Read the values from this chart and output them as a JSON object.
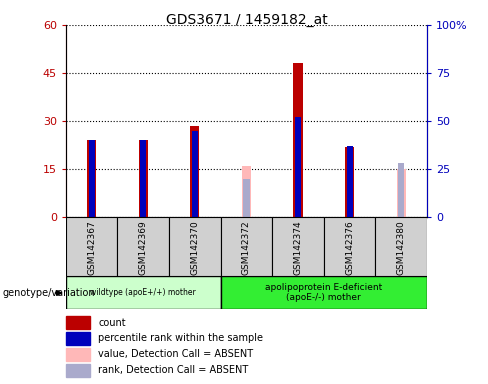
{
  "title": "GDS3671 / 1459182_at",
  "samples": [
    "GSM142367",
    "GSM142369",
    "GSM142370",
    "GSM142372",
    "GSM142374",
    "GSM142376",
    "GSM142380"
  ],
  "count_values": [
    24,
    24,
    28.5,
    null,
    48,
    22,
    null
  ],
  "percentile_values": [
    40,
    40,
    45,
    null,
    52,
    37,
    null
  ],
  "absent_count_values": [
    null,
    null,
    null,
    16,
    null,
    null,
    15
  ],
  "absent_rank_values": [
    null,
    null,
    null,
    20,
    null,
    null,
    28
  ],
  "ylim_left": [
    0,
    60
  ],
  "ylim_right": [
    0,
    100
  ],
  "yticks_left": [
    0,
    15,
    30,
    45,
    60
  ],
  "yticks_right": [
    0,
    25,
    50,
    75,
    100
  ],
  "yticklabels_left": [
    "0",
    "15",
    "30",
    "45",
    "60"
  ],
  "yticklabels_right": [
    "0",
    "25",
    "50",
    "75",
    "100%"
  ],
  "color_red": "#bb0000",
  "color_blue": "#0000bb",
  "color_pink": "#ffb8b8",
  "color_lightblue": "#aaaacc",
  "color_gray_box": "#d0d0d0",
  "group1_label": "wildtype (apoE+/+) mother",
  "group2_label": "apolipoprotein E-deficient\n(apoE-/-) mother",
  "group1_samples": [
    0,
    1,
    2
  ],
  "group2_samples": [
    3,
    4,
    5,
    6
  ],
  "group1_color": "#ccffcc",
  "group2_color": "#33ee33",
  "xlabel_label": "genotype/variation",
  "legend_items": [
    {
      "label": "count",
      "color": "#bb0000"
    },
    {
      "label": "percentile rank within the sample",
      "color": "#0000bb"
    },
    {
      "label": "value, Detection Call = ABSENT",
      "color": "#ffb8b8"
    },
    {
      "label": "rank, Detection Call = ABSENT",
      "color": "#aaaacc"
    }
  ]
}
